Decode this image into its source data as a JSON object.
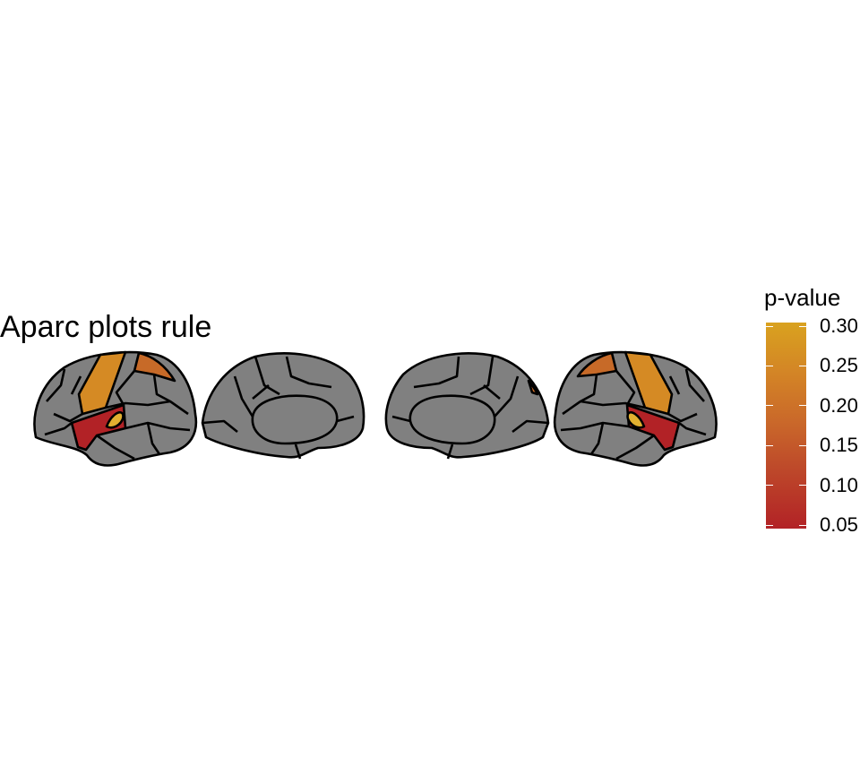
{
  "title": "Aparc plots rule",
  "legend": {
    "title": "p-value",
    "ticks": [
      "0.30",
      "0.25",
      "0.20",
      "0.15",
      "0.10",
      "0.05"
    ],
    "colors": {
      "high": "#D9A21F",
      "mid_high": "#D38426",
      "mid": "#C9662A",
      "mid_low": "#BE4A2A",
      "low": "#B22226"
    }
  },
  "colors": {
    "region_default": "#808080",
    "outline": "#000000"
  },
  "views": [
    "left-lateral",
    "left-medial",
    "right-medial",
    "right-lateral"
  ]
}
